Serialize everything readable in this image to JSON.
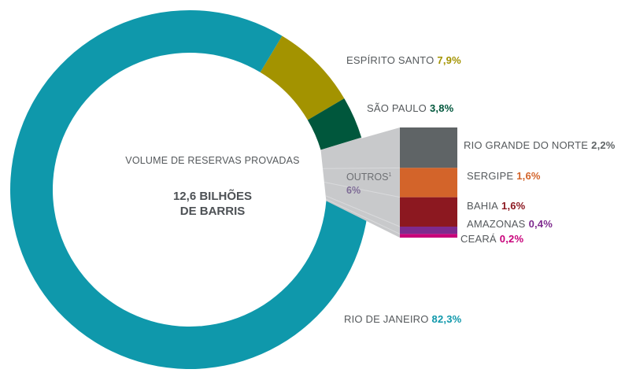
{
  "center": {
    "title": "VOLUME DE RESERVAS PROVADAS",
    "value_line1": "12,6 BILHÕES",
    "value_line2": "DE BARRIS"
  },
  "outros": {
    "label": "OUTROS",
    "footnote": "1",
    "pct": "6%",
    "color": "#c8c9cb"
  },
  "chart_data": {
    "type": "pie",
    "style": "donut-with-exploded-bar",
    "title": "VOLUME DE RESERVAS PROVADAS",
    "total": "12,6 BILHÕES DE BARRIS",
    "slices": [
      {
        "name": "RIO DE JANEIRO",
        "value": 82.3,
        "label": "82,3%",
        "color": "#0f98ab"
      },
      {
        "name": "ESPÍRITO SANTO",
        "value": 7.9,
        "label": "7,9%",
        "color": "#a39300"
      },
      {
        "name": "SÃO PAULO",
        "value": 3.8,
        "label": "3,8%",
        "color": "#00573c"
      },
      {
        "name": "OUTROS",
        "value": 6,
        "label": "6%",
        "color": "#c8c9cb"
      }
    ],
    "breakdown": {
      "parent": "OUTROS",
      "items": [
        {
          "name": "RIO GRANDE DO NORTE",
          "value": 2.2,
          "label": "2,2%",
          "color": "#5f6466"
        },
        {
          "name": "SERGIPE",
          "value": 1.6,
          "label": "1,6%",
          "color": "#d3642a"
        },
        {
          "name": "BAHIA",
          "value": 1.6,
          "label": "1,6%",
          "color": "#8c1820"
        },
        {
          "name": "AMAZONAS",
          "value": 0.4,
          "label": "0,4%",
          "color": "#7e2a8e"
        },
        {
          "name": "CEARÁ",
          "value": 0.2,
          "label": "0,2%",
          "color": "#c8007a"
        }
      ]
    }
  }
}
